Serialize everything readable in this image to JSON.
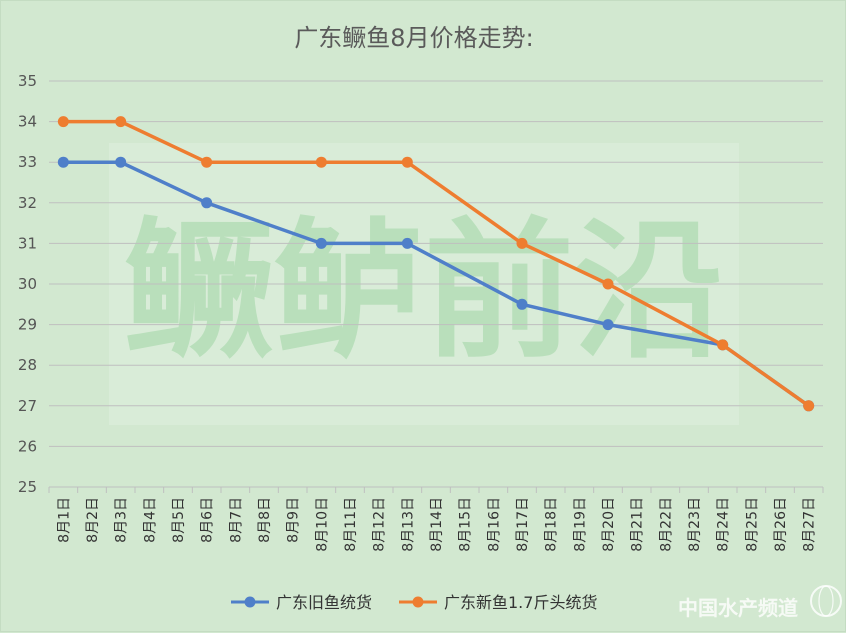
{
  "colors": {
    "background": "#d2e8d0",
    "series_old": "#4f7fc9",
    "series_new": "#ee7d30",
    "grid": "#bfbfbf"
  },
  "watermark": {
    "text": "鳜鲈前沿"
  },
  "logo": {
    "text": "中国水产频道"
  },
  "chart_data": {
    "type": "line",
    "title": "广东鳜鱼8月价格走势:",
    "xlabel": "",
    "ylabel": "",
    "ylim": [
      25,
      35
    ],
    "yticks": [
      "25",
      "26",
      "27",
      "28",
      "29",
      "30",
      "31",
      "32",
      "33",
      "34",
      "35"
    ],
    "grid": true,
    "legend_position": "bottom",
    "x": [
      "8月1日",
      "8月2日",
      "8月3日",
      "8月4日",
      "8月5日",
      "8月6日",
      "8月7日",
      "8月8日",
      "8月9日",
      "8月10日",
      "8月11日",
      "8月12日",
      "8月13日",
      "8月14日",
      "8月15日",
      "8月16日",
      "8月17日",
      "8月18日",
      "8月19日",
      "8月20日",
      "8月21日",
      "8月22日",
      "8月23日",
      "8月24日",
      "8月25日",
      "8月26日",
      "8月27日"
    ],
    "series": [
      {
        "name": "广东旧鱼统货",
        "color": "#4f7fc9",
        "points": [
          {
            "x": "8月1日",
            "y": 33
          },
          {
            "x": "8月3日",
            "y": 33
          },
          {
            "x": "8月6日",
            "y": 32
          },
          {
            "x": "8月10日",
            "y": 31
          },
          {
            "x": "8月13日",
            "y": 31
          },
          {
            "x": "8月17日",
            "y": 29.5
          },
          {
            "x": "8月20日",
            "y": 29
          },
          {
            "x": "8月24日",
            "y": 28.5
          },
          {
            "x": "8月27日",
            "y": 27
          }
        ]
      },
      {
        "name": "广东新鱼1.7斤头统货",
        "color": "#ee7d30",
        "points": [
          {
            "x": "8月1日",
            "y": 34
          },
          {
            "x": "8月3日",
            "y": 34
          },
          {
            "x": "8月6日",
            "y": 33
          },
          {
            "x": "8月10日",
            "y": 33
          },
          {
            "x": "8月13日",
            "y": 33
          },
          {
            "x": "8月17日",
            "y": 31
          },
          {
            "x": "8月20日",
            "y": 30
          },
          {
            "x": "8月24日",
            "y": 28.5
          },
          {
            "x": "8月27日",
            "y": 27
          }
        ]
      }
    ]
  }
}
